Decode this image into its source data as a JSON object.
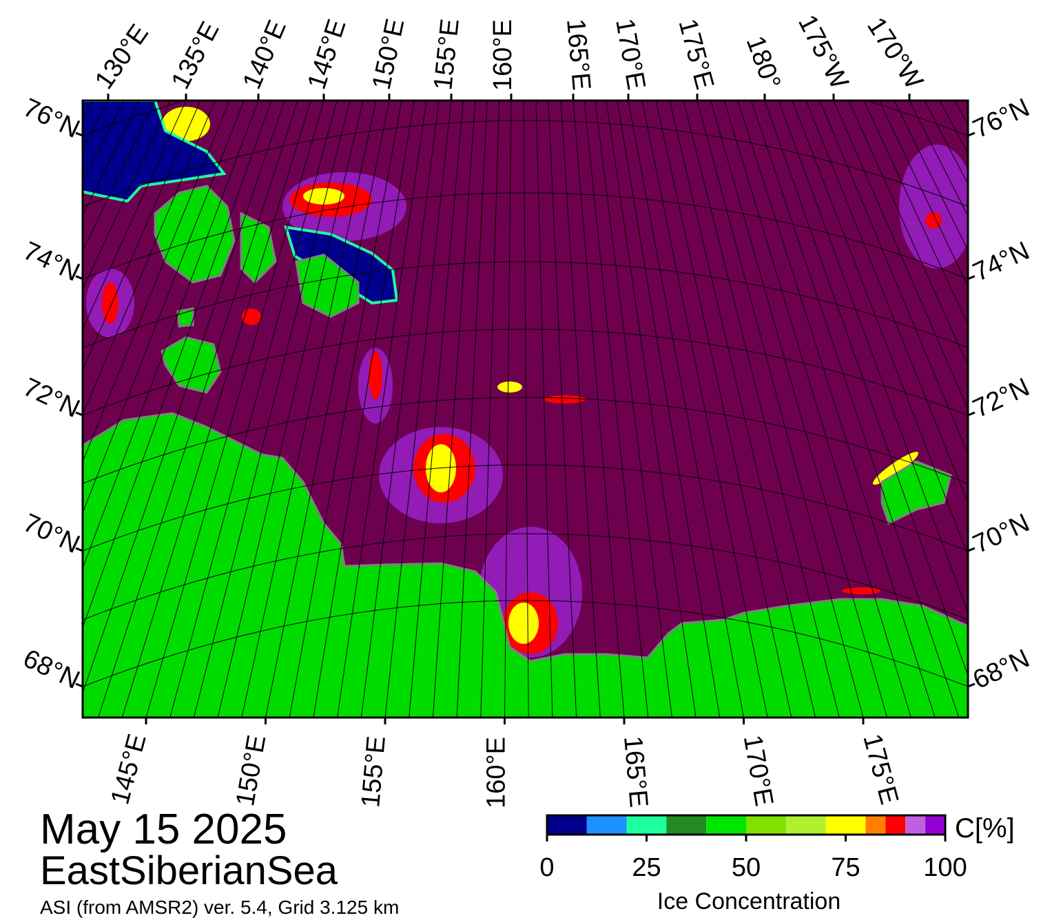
{
  "map": {
    "top_labels": [
      "130°E",
      "135°E",
      "140°E",
      "145°E",
      "150°E",
      "155°E",
      "160°E",
      "165°E",
      "170°E",
      "175°E",
      "180°",
      "175°W",
      "170°W"
    ],
    "bottom_labels": [
      "145°E",
      "150°E",
      "155°E",
      "160°E",
      "165°E",
      "170°E",
      "175°E"
    ],
    "left_labels": [
      "76°N",
      "74°N",
      "72°N",
      "70°N",
      "68°N"
    ],
    "right_labels": [
      "76°N",
      "74°N",
      "72°N",
      "70°N",
      "68°N"
    ]
  },
  "date": "May 15 2025",
  "region": "EastSiberianSea",
  "source": "ASI (from AMSR2) ver. 5.4,  Grid 3.125 km",
  "colorbar": {
    "label": "Ice Concentration",
    "unit": "C[%]",
    "lim": [
      0,
      100
    ],
    "ticks": [
      0,
      25,
      50,
      75,
      100
    ],
    "bounds": [
      0,
      10,
      20,
      30,
      40,
      50,
      60,
      70,
      80,
      85,
      90,
      95,
      100
    ],
    "colors": [
      "#00008c",
      "#1e90ff",
      "#1effa0",
      "#228b22",
      "#00e600",
      "#80e000",
      "#b0f030",
      "#ffff00",
      "#ff8000",
      "#ff0000",
      "#c060e0",
      "#9400d3"
    ]
  }
}
